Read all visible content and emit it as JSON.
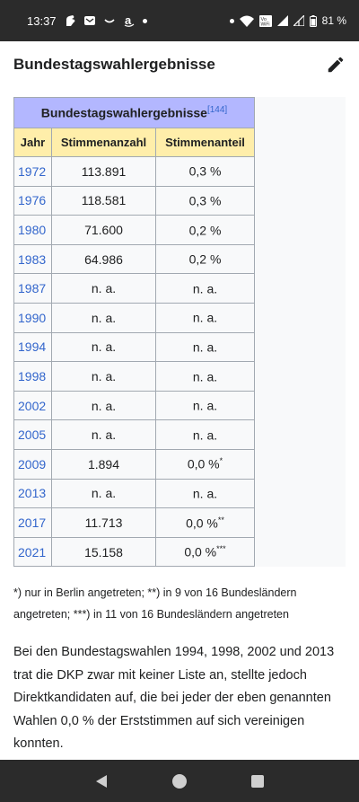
{
  "status_bar": {
    "time": "13:37",
    "battery": "81 %",
    "network_label": "Vo\nWiFi"
  },
  "section": {
    "title": "Bundestagswahlergebnisse"
  },
  "table": {
    "caption": "Bundestagswahlergebnisse",
    "caption_ref": "[144]",
    "headers": [
      "Jahr",
      "Stimmenanzahl",
      "Stimmenanteil"
    ],
    "rows": [
      {
        "year": "1972",
        "votes": "113.891",
        "share": "0,3 %",
        "note": ""
      },
      {
        "year": "1976",
        "votes": "118.581",
        "share": "0,3 %",
        "note": ""
      },
      {
        "year": "1980",
        "votes": "71.600",
        "share": "0,2 %",
        "note": ""
      },
      {
        "year": "1983",
        "votes": "64.986",
        "share": "0,2 %",
        "note": ""
      },
      {
        "year": "1987",
        "votes": "n. a.",
        "share": "n. a.",
        "note": ""
      },
      {
        "year": "1990",
        "votes": "n. a.",
        "share": "n. a.",
        "note": ""
      },
      {
        "year": "1994",
        "votes": "n. a.",
        "share": "n. a.",
        "note": ""
      },
      {
        "year": "1998",
        "votes": "n. a.",
        "share": "n. a.",
        "note": ""
      },
      {
        "year": "2002",
        "votes": "n. a.",
        "share": "n. a.",
        "note": ""
      },
      {
        "year": "2005",
        "votes": "n. a.",
        "share": "n. a.",
        "note": ""
      },
      {
        "year": "2009",
        "votes": "1.894",
        "share": "0,0 %",
        "note": "*"
      },
      {
        "year": "2013",
        "votes": "n. a.",
        "share": "n. a.",
        "note": ""
      },
      {
        "year": "2017",
        "votes": "11.713",
        "share": "0,0 %",
        "note": "**"
      },
      {
        "year": "2021",
        "votes": "15.158",
        "share": "0,0 %",
        "note": "***"
      }
    ]
  },
  "footnote": "*) nur in Berlin angetreten; **) in 9 von 16 Bundesländern angetreten; ***) in 11 von 16 Bundesländern angetreten",
  "paragraph": "Bei den Bundestagswahlen 1994, 1998, 2002 und 2013 trat die DKP zwar mit keiner Liste an, stellte jedoch Direktkandidaten auf, die bei jeder der eben genannten Wahlen 0,0 % der Erststimmen auf sich vereinigen konnten.",
  "colors": {
    "caption_bg": "#b3b7ff",
    "header_bg": "#ffeeaa",
    "link": "#3366cc",
    "bars": "#2b2b2b"
  },
  "icons": {
    "edit": "pencil-icon",
    "back": "back-triangle-icon",
    "home": "home-circle-icon",
    "recents": "recents-square-icon"
  }
}
